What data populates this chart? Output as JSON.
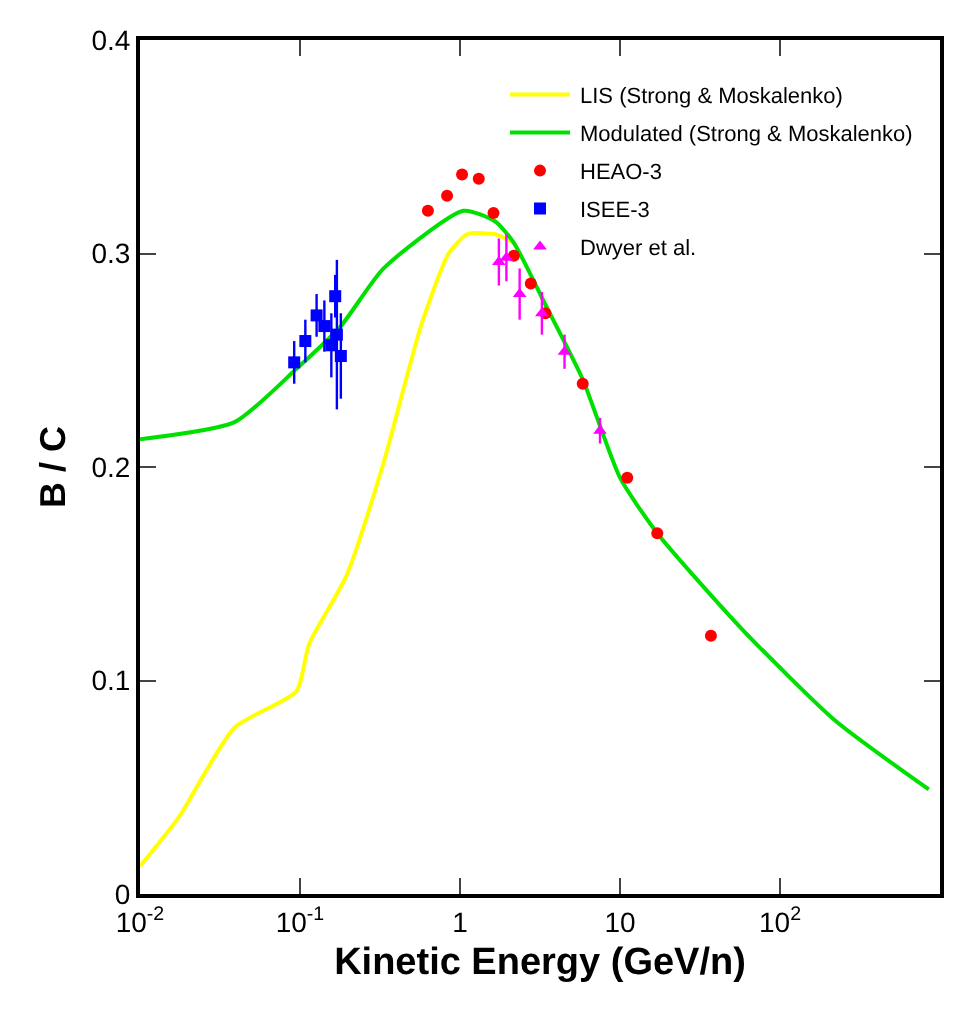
{
  "chart_data": {
    "type": "scatter",
    "xlabel": "Kinetic Energy (GeV/n)",
    "ylabel": "B / C",
    "log": "x",
    "xlim": [
      0.01,
      1000
    ],
    "xticks": [
      {
        "value": 0.01,
        "label": "10$^{-2}$"
      },
      {
        "value": 0.1,
        "label": "10$^{-1}$"
      },
      1,
      10,
      {
        "value": 100,
        "label": "10$^{2}$"
      }
    ],
    "ylim": [
      0,
      0.4
    ],
    "yticks": [
      0,
      0.1,
      0.2,
      0.3,
      0.4
    ],
    "legend": "top right",
    "grid": false,
    "series": [
      {
        "name": "LIS (Strong & Moskalenko)",
        "type": "line",
        "color": "#ffff00",
        "line_style": "solid",
        "x": [
          0.01,
          0.0175,
          0.039,
          0.095,
          0.114,
          0.195,
          0.333,
          0.57,
          0.85,
          1.11,
          1.66,
          2.17
        ],
        "values": [
          0.013,
          0.036,
          0.078,
          0.095,
          0.117,
          0.149,
          0.202,
          0.266,
          0.3,
          0.309,
          0.309,
          0.305
        ]
      },
      {
        "name": "Modulated (Strong & Moskalenko)",
        "type": "line",
        "color": "#00e000",
        "line_style": "solid",
        "x": [
          0.01,
          0.039,
          0.095,
          0.18,
          0.333,
          1.05,
          1.66,
          2.17,
          3.42,
          5.85,
          10,
          17.1,
          58,
          223,
          851
        ],
        "values": [
          0.213,
          0.221,
          0.246,
          0.266,
          0.293,
          0.32,
          0.315,
          0.305,
          0.276,
          0.241,
          0.195,
          0.169,
          0.124,
          0.081,
          0.049
        ]
      },
      {
        "name": "HEAO-3",
        "marker": "circle",
        "color": "#ff0000",
        "x": [
          0.63,
          0.83,
          1.03,
          1.31,
          1.62,
          2.17,
          2.77,
          3.42,
          5.85,
          11.1,
          17.1,
          37
        ],
        "values": [
          0.32,
          0.327,
          0.337,
          0.335,
          0.319,
          0.299,
          0.286,
          0.272,
          0.239,
          0.195,
          0.169,
          0.121
        ]
      },
      {
        "name": "ISEE-3",
        "marker": "square",
        "color": "#0000ff",
        "x": [
          0.092,
          0.108,
          0.127,
          0.142,
          0.157,
          0.166,
          0.17,
          0.18
        ],
        "values": [
          0.249,
          0.259,
          0.271,
          0.266,
          0.257,
          0.28,
          0.262,
          0.252
        ],
        "errors": [
          0.01,
          0.01,
          0.01,
          0.012,
          0.015,
          0.01,
          0.035,
          0.02
        ]
      },
      {
        "name": "Dwyer et al.",
        "marker": "triangle",
        "color": "#ff00ff",
        "x": [
          1.75,
          1.95,
          2.36,
          3.25,
          4.5,
          7.5
        ],
        "values": [
          0.296,
          0.298,
          0.281,
          0.272,
          0.254,
          0.217
        ],
        "errors": [
          0.011,
          0.011,
          0.012,
          0.01,
          0.008,
          0.006
        ]
      }
    ]
  }
}
